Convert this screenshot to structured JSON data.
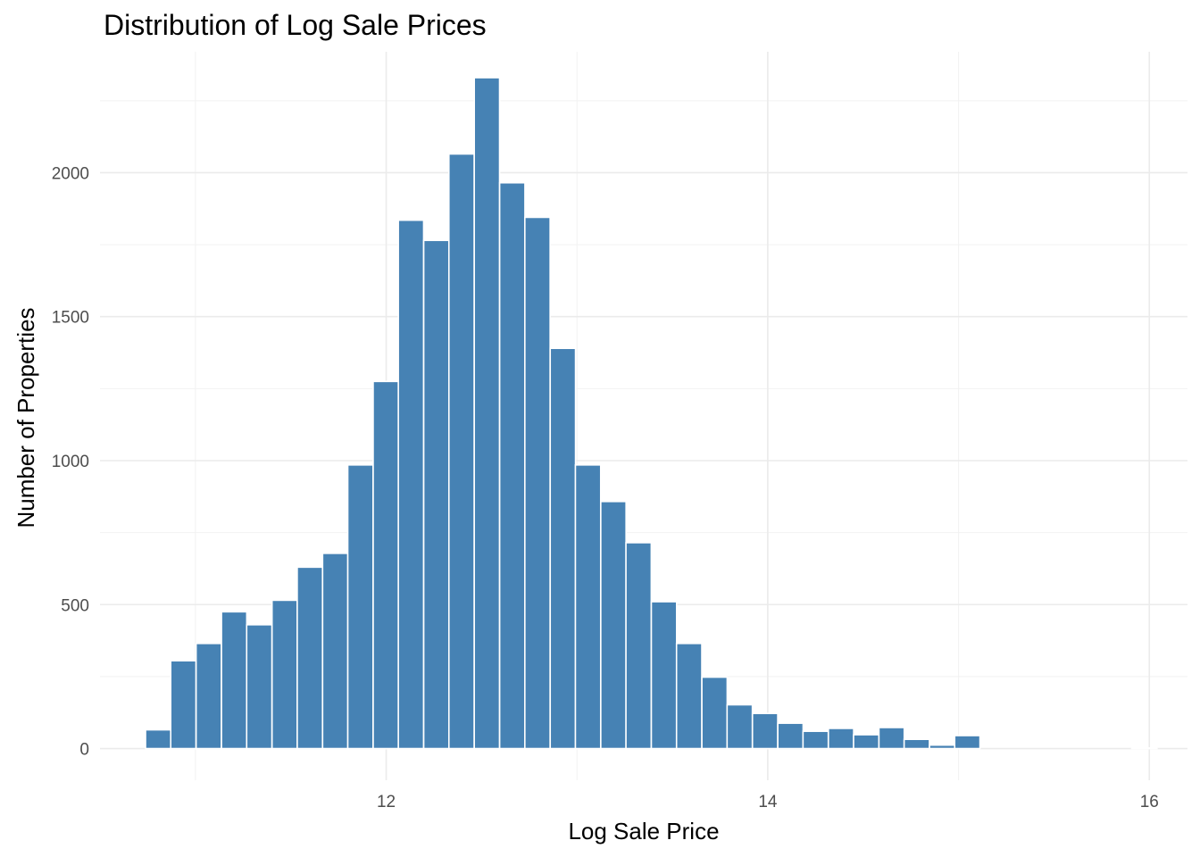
{
  "chart_data": {
    "type": "bar",
    "title": "Distribution of Log Sale Prices",
    "xlabel": "Log Sale Price",
    "ylabel": "Number of Properties",
    "xlim": [
      10.5,
      16.2
    ],
    "ylim": [
      -110,
      2420
    ],
    "x_ticks": [
      12,
      14,
      16
    ],
    "y_ticks": [
      0,
      500,
      1000,
      1500,
      2000
    ],
    "bin_width": 0.1325,
    "bins": [
      {
        "x": 10.805,
        "count": 65
      },
      {
        "x": 10.937,
        "count": 305
      },
      {
        "x": 11.07,
        "count": 365
      },
      {
        "x": 11.203,
        "count": 475
      },
      {
        "x": 11.335,
        "count": 430
      },
      {
        "x": 11.468,
        "count": 515
      },
      {
        "x": 11.6,
        "count": 630
      },
      {
        "x": 11.733,
        "count": 678
      },
      {
        "x": 11.865,
        "count": 985
      },
      {
        "x": 11.998,
        "count": 1275
      },
      {
        "x": 12.13,
        "count": 1835
      },
      {
        "x": 12.263,
        "count": 1765
      },
      {
        "x": 12.395,
        "count": 2065
      },
      {
        "x": 12.528,
        "count": 2330
      },
      {
        "x": 12.661,
        "count": 1965
      },
      {
        "x": 12.793,
        "count": 1845
      },
      {
        "x": 12.926,
        "count": 1390
      },
      {
        "x": 13.058,
        "count": 985
      },
      {
        "x": 13.191,
        "count": 858
      },
      {
        "x": 13.323,
        "count": 715
      },
      {
        "x": 13.456,
        "count": 510
      },
      {
        "x": 13.588,
        "count": 365
      },
      {
        "x": 13.721,
        "count": 248
      },
      {
        "x": 13.853,
        "count": 152
      },
      {
        "x": 13.986,
        "count": 122
      },
      {
        "x": 14.119,
        "count": 88
      },
      {
        "x": 14.251,
        "count": 60
      },
      {
        "x": 14.384,
        "count": 70
      },
      {
        "x": 14.516,
        "count": 48
      },
      {
        "x": 14.649,
        "count": 73
      },
      {
        "x": 14.781,
        "count": 32
      },
      {
        "x": 14.914,
        "count": 12
      },
      {
        "x": 15.046,
        "count": 45
      },
      {
        "x": 15.179,
        "count": 0
      },
      {
        "x": 15.311,
        "count": 0
      },
      {
        "x": 15.444,
        "count": 0
      },
      {
        "x": 15.577,
        "count": 0
      },
      {
        "x": 15.709,
        "count": 0
      },
      {
        "x": 15.842,
        "count": 0
      },
      {
        "x": 15.974,
        "count": 2
      }
    ],
    "bar_color": "#4682B4",
    "grid": true,
    "legend": "none"
  }
}
